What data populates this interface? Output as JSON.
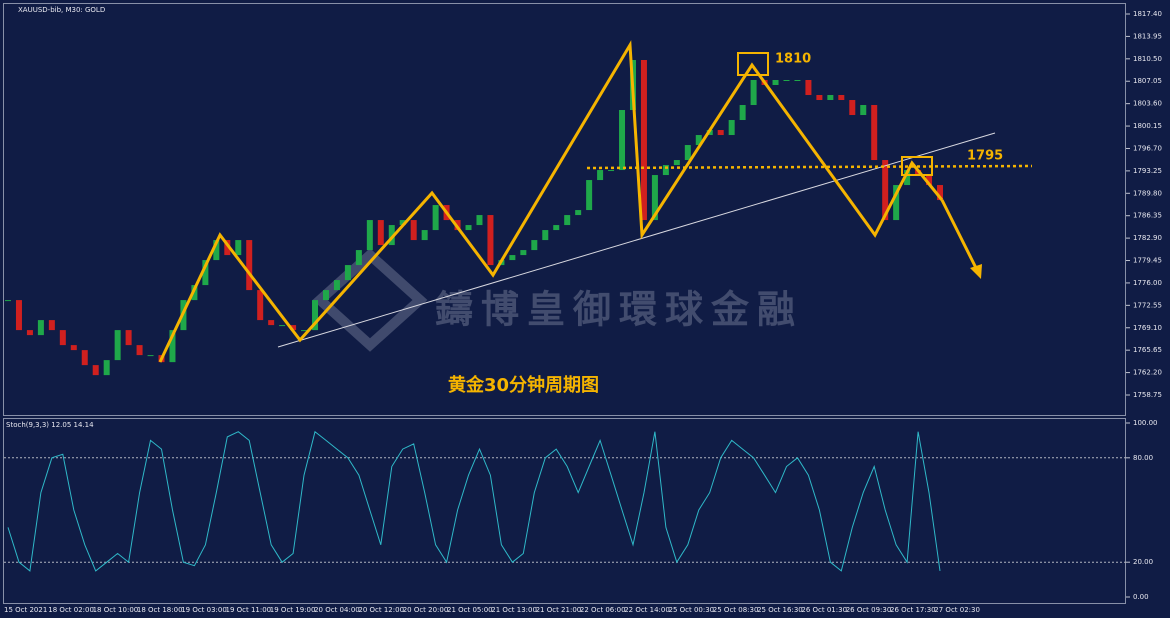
{
  "chart_data": [
    {
      "type": "candlestick",
      "title": "XAUUSD-bib, M30:  GOLD",
      "watermark": "鑄博皇御環球金融",
      "caption": "黄金30分钟周期图",
      "annotations": [
        "1810",
        "1795"
      ],
      "up_color": "#1fa84a",
      "down_color": "#d0201f",
      "values": [
        1773.36,
        1768.74,
        1767.97,
        1770.28,
        1768.74,
        1766.43,
        1765.66,
        1763.35,
        1761.81,
        1764.12,
        1768.74,
        1766.43,
        1764.89,
        1764.89,
        1763.81,
        1768.74,
        1773.36,
        1775.67,
        1779.52,
        1782.6,
        1780.29,
        1782.6,
        1774.9,
        1770.28,
        1769.51,
        1769.51,
        1768.74,
        1768.74,
        1773.36,
        1774.9,
        1776.44,
        1778.75,
        1781.06,
        1785.68,
        1781.83,
        1784.91,
        1785.68,
        1782.6,
        1784.14,
        1787.99,
        1785.68,
        1784.14,
        1784.91,
        1786.45,
        1778.75,
        1779.52,
        1780.29,
        1781.06,
        1782.6,
        1784.14,
        1784.91,
        1786.45,
        1787.22,
        1791.84,
        1793.38,
        1793.38,
        1802.62,
        1810.32,
        1785.68,
        1792.61,
        1794.15,
        1794.92,
        1797.23,
        1798.77,
        1799.54,
        1798.77,
        1801.08,
        1803.39,
        1807.24,
        1806.47,
        1807.24,
        1807.24,
        1807.24,
        1804.93,
        1804.16,
        1804.93,
        1804.16,
        1801.85,
        1803.39,
        1794.92,
        1785.68,
        1791.07,
        1793.38,
        1792.61,
        1791.07,
        1788.76
      ],
      "ylim": [
        1755.67,
        1818.94
      ],
      "yticks": [
        {
          "value": 1817.4,
          "label": "1817.40"
        },
        {
          "value": 1813.95,
          "label": "1813.95"
        },
        {
          "value": 1810.5,
          "label": "1810.50"
        },
        {
          "value": 1807.05,
          "label": "1807.05"
        },
        {
          "value": 1803.6,
          "label": "1803.60"
        },
        {
          "value": 1800.15,
          "label": "1800.15"
        },
        {
          "value": 1796.7,
          "label": "1796.70"
        },
        {
          "value": 1793.25,
          "label": "1793.25"
        },
        {
          "value": 1789.8,
          "label": "1789.80"
        },
        {
          "value": 1786.35,
          "label": "1786.35"
        },
        {
          "value": 1782.9,
          "label": "1782.90"
        },
        {
          "value": 1779.45,
          "label": "1779.45"
        },
        {
          "value": 1776,
          "label": "1776.00"
        },
        {
          "value": 1772.55,
          "label": "1772.55"
        },
        {
          "value": 1769.1,
          "label": "1769.10"
        },
        {
          "value": 1765.65,
          "label": "1765.65"
        },
        {
          "value": 1762.2,
          "label": "1762.20"
        },
        {
          "value": 1758.75,
          "label": "1758.75"
        }
      ]
    },
    {
      "type": "line",
      "title": "Stoch(9,3,3) 12.05 14.14",
      "color": "#2fb8c8",
      "values": [
        40,
        20,
        15,
        60,
        80,
        82,
        50,
        30,
        15,
        20,
        25,
        20,
        60,
        90,
        85,
        50,
        20,
        18,
        30,
        60,
        92,
        95,
        90,
        60,
        30,
        20,
        25,
        70,
        95,
        90,
        85,
        80,
        70,
        50,
        30,
        75,
        85,
        88,
        60,
        30,
        20,
        50,
        70,
        85,
        70,
        30,
        20,
        25,
        60,
        80,
        85,
        75,
        60,
        75,
        90,
        70,
        50,
        30,
        60,
        95,
        40,
        20,
        30,
        50,
        60,
        80,
        90,
        85,
        80,
        70,
        60,
        75,
        80,
        70,
        50,
        20,
        15,
        40,
        60,
        75,
        50,
        30,
        20,
        95,
        60,
        15
      ],
      "ylim": [
        -3.45,
        102.3
      ],
      "yticks": [
        {
          "value": 100,
          "label": "100.00"
        },
        {
          "value": 80,
          "label": "80.00"
        },
        {
          "value": 20,
          "label": "20.00"
        },
        {
          "value": 0,
          "label": "0.00"
        }
      ]
    }
  ],
  "time_labels": [
    "15 Oct 2021",
    "18 Oct 02:00",
    "18 Oct 10:00",
    "18 Oct 18:00",
    "19 Oct 03:00",
    "19 Oct 11:00",
    "19 Oct 19:00",
    "20 Oct 04:00",
    "20 Oct 12:00",
    "20 Oct 20:00",
    "21 Oct 05:00",
    "21 Oct 13:00",
    "21 Oct 21:00",
    "22 Oct 06:00",
    "22 Oct 14:00",
    "25 Oct 00:30",
    "25 Oct 08:30",
    "25 Oct 16:30",
    "26 Oct 01:30",
    "26 Oct 09:30",
    "26 Oct 17:30",
    "27 Oct 02:30"
  ]
}
